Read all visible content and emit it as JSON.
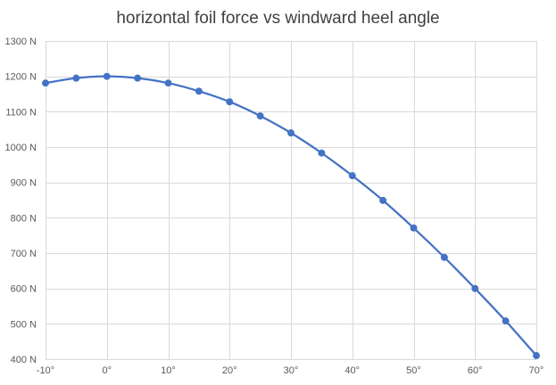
{
  "chart_data": {
    "type": "line",
    "title": "horizontal foil force vs windward heel angle",
    "xlabel": "",
    "ylabel": "",
    "x": [
      -10,
      -5,
      0,
      5,
      10,
      15,
      20,
      25,
      30,
      35,
      40,
      45,
      50,
      55,
      60,
      65,
      70
    ],
    "series": [
      {
        "values": [
          1181,
          1195,
          1200,
          1195,
          1181,
          1158,
          1128,
          1088,
          1040,
          983,
          919,
          849,
          771,
          688,
          600,
          508,
          410
        ]
      }
    ],
    "xlim": [
      -10,
      70
    ],
    "ylim": [
      400,
      1300
    ],
    "x_ticks": [
      -10,
      0,
      10,
      20,
      30,
      40,
      50,
      60,
      70
    ],
    "x_tick_labels": [
      "-10°",
      "0°",
      "10°",
      "20°",
      "30°",
      "40°",
      "50°",
      "60°",
      "70°"
    ],
    "y_ticks": [
      400,
      500,
      600,
      700,
      800,
      900,
      1000,
      1100,
      1200,
      1300
    ],
    "y_tick_labels": [
      "400 N",
      "500 N",
      "600 N",
      "700 N",
      "800 N",
      "900 N",
      "1000 N",
      "1100 N",
      "1200 N",
      "1300 N"
    ],
    "grid": true,
    "line_color": "#4472C4",
    "grid_color": "#D9D9D9",
    "markers": true,
    "smooth": true
  }
}
